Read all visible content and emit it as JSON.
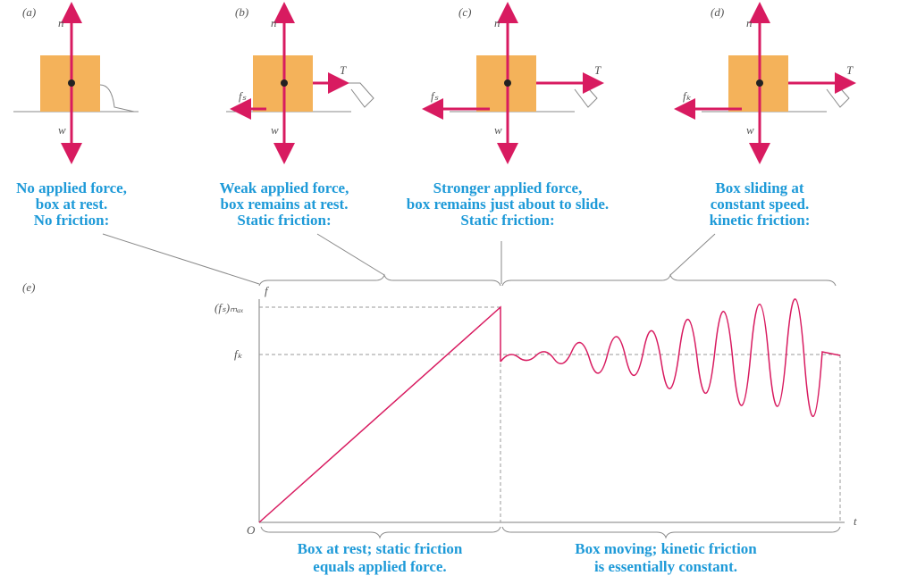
{
  "panels": [
    {
      "label": "(a)",
      "n": "n",
      "w": "w",
      "caption": [
        "No applied force,",
        "box at rest.",
        "No friction:"
      ]
    },
    {
      "label": "(b)",
      "n": "n",
      "w": "w",
      "T": "T",
      "f": "fₛ",
      "caption": [
        "Weak applied force,",
        "box remains at rest.",
        "Static friction:"
      ]
    },
    {
      "label": "(c)",
      "n": "n",
      "w": "w",
      "T": "T",
      "f": "fₛ",
      "caption": [
        "Stronger applied force,",
        "box remains just about to slide.",
        "Static friction:"
      ]
    },
    {
      "label": "(d)",
      "n": "n",
      "w": "w",
      "T": "T",
      "f": "fₖ",
      "caption": [
        "Box sliding at",
        "constant speed.",
        "kinetic friction:"
      ]
    }
  ],
  "graph": {
    "label": "(e)",
    "y_axis": "f",
    "x_axis": "t",
    "origin": "O",
    "fs_max": "(fₛ)ₘₐₓ",
    "fk": "fₖ",
    "left_caption": [
      "Box at rest; static friction",
      "equals applied force."
    ],
    "right_caption": [
      "Box moving; kinetic friction",
      "is essentially constant."
    ]
  }
}
